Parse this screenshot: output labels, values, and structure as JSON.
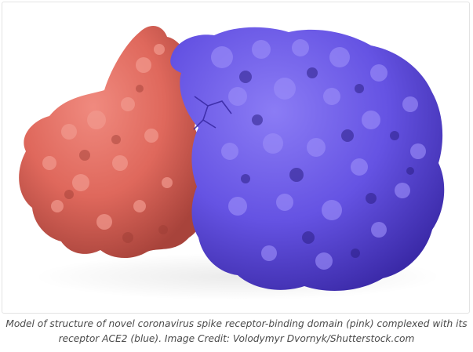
{
  "figure": {
    "caption": "Model of structure of novel coronavirus spike receptor-binding domain (pink) complexed with its receptor ACE2 (blue). Image Credit: Volodymyr Dvornyk/Shutterstock.com",
    "subjects": [
      {
        "name": "spike receptor-binding domain",
        "color": "#e06b60"
      },
      {
        "name": "ACE2",
        "color": "#6a58e6"
      }
    ]
  }
}
